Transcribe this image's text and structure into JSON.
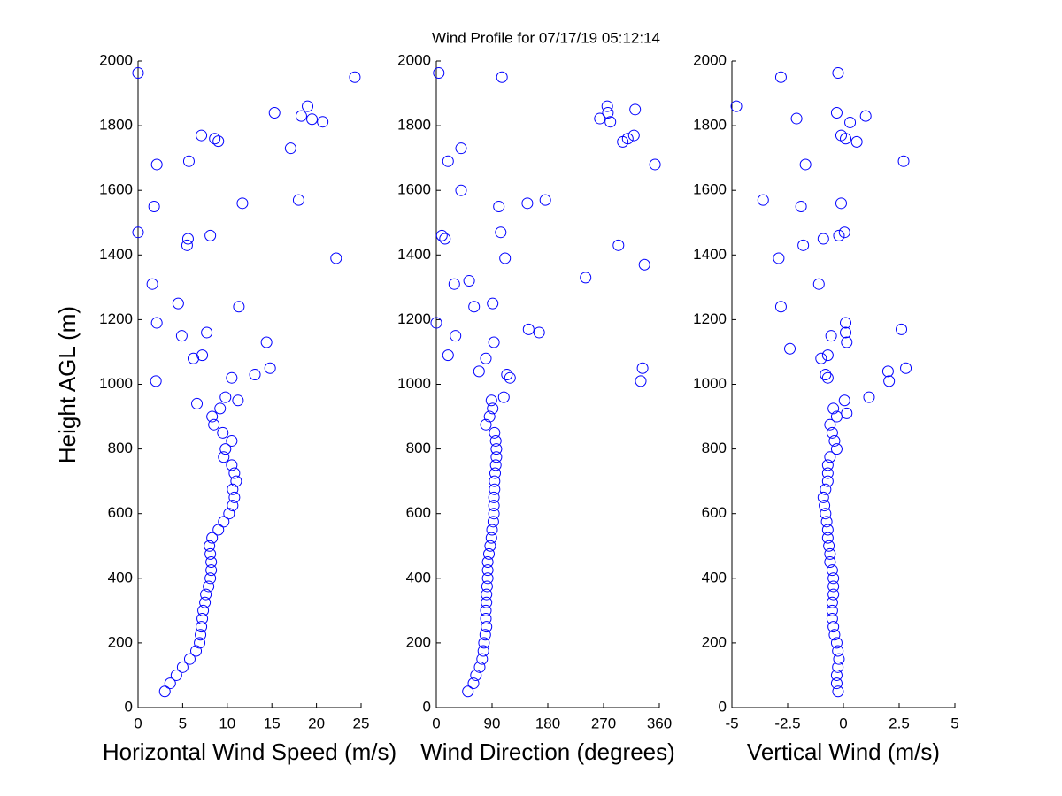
{
  "title": "Wind Profile for  07/17/19 05:12:14",
  "chart_data": [
    {
      "type": "scatter",
      "xlabel": "Horizontal Wind Speed (m/s)",
      "ylabel": "Height AGL (m)",
      "color": "#0000ff",
      "xlim": [
        0,
        25
      ],
      "xticks": [
        0,
        5,
        10,
        15,
        20,
        25
      ],
      "ylim": [
        0,
        2000
      ],
      "yticks": [
        0,
        200,
        400,
        600,
        800,
        1000,
        1200,
        1400,
        1600,
        1800,
        2000
      ],
      "x": [
        3.0,
        3.6,
        4.3,
        5.0,
        5.8,
        6.5,
        6.9,
        7.0,
        7.1,
        7.2,
        7.3,
        7.5,
        7.6,
        7.9,
        8.1,
        8.2,
        8.2,
        8.1,
        8.0,
        8.3,
        9.0,
        9.6,
        10.2,
        10.6,
        10.8,
        10.6,
        11.0,
        10.8,
        10.5,
        9.6,
        9.8,
        10.5,
        9.5,
        8.5,
        8.3,
        9.2,
        0,
        24.3,
        19,
        15.3,
        18.3,
        19.5,
        20.7,
        7.1,
        8.6,
        9.0,
        17.1,
        5.7,
        2.1,
        18.0,
        11.7,
        1.8,
        0,
        8.1,
        5.6,
        5.5,
        22.2,
        1.6,
        4.5,
        11.3,
        2.1,
        7.7,
        4.9,
        14.4,
        7.2,
        6.2,
        14.8,
        13.1,
        10.5,
        2.0,
        9.8,
        11.2,
        6.6
      ],
      "y": [
        50,
        75,
        100,
        125,
        150,
        175,
        200,
        225,
        250,
        275,
        300,
        325,
        350,
        375,
        400,
        425,
        450,
        475,
        500,
        525,
        550,
        575,
        600,
        625,
        650,
        675,
        700,
        725,
        750,
        775,
        800,
        825,
        850,
        875,
        900,
        925,
        1963,
        1950,
        1860,
        1840,
        1830,
        1820,
        1812,
        1770,
        1760,
        1752,
        1730,
        1690,
        1680,
        1570,
        1560,
        1550,
        1470,
        1460,
        1450,
        1430,
        1390,
        1310,
        1250,
        1240,
        1190,
        1160,
        1150,
        1130,
        1090,
        1080,
        1050,
        1030,
        1020,
        1010,
        960,
        950,
        940
      ]
    },
    {
      "type": "scatter",
      "xlabel": "Wind Direction (degrees)",
      "color": "#0000ff",
      "xlim": [
        0,
        360
      ],
      "xticks": [
        0,
        90,
        180,
        270,
        360
      ],
      "ylim": [
        0,
        2000
      ],
      "yticks": [
        0,
        200,
        400,
        600,
        800,
        1000,
        1200,
        1400,
        1600,
        1800,
        2000
      ],
      "x": [
        51,
        60,
        64,
        70,
        74,
        76,
        77,
        79,
        81,
        80,
        80,
        81,
        81,
        82,
        83,
        83,
        83,
        85,
        87,
        89,
        90,
        92,
        93,
        93,
        93,
        94,
        94,
        95,
        96,
        97,
        97,
        96,
        94,
        80,
        86,
        91,
        4,
        106,
        276,
        321,
        277,
        264,
        281,
        319,
        309,
        301,
        40,
        19,
        353,
        176,
        147,
        101,
        40,
        104,
        9,
        14,
        294,
        111,
        336,
        241,
        53,
        29,
        91,
        61,
        0,
        149,
        166,
        31,
        93,
        19,
        80,
        333,
        69,
        114,
        119,
        330,
        109,
        89
      ],
      "y": [
        50,
        75,
        100,
        125,
        150,
        175,
        200,
        225,
        250,
        275,
        300,
        325,
        350,
        375,
        400,
        425,
        450,
        475,
        500,
        525,
        550,
        575,
        600,
        625,
        650,
        675,
        700,
        725,
        750,
        775,
        800,
        825,
        850,
        875,
        900,
        925,
        1963,
        1950,
        1860,
        1850,
        1840,
        1822,
        1812,
        1770,
        1760,
        1750,
        1730,
        1690,
        1680,
        1570,
        1560,
        1550,
        1600,
        1470,
        1460,
        1450,
        1430,
        1390,
        1370,
        1330,
        1320,
        1310,
        1250,
        1240,
        1190,
        1170,
        1160,
        1150,
        1130,
        1090,
        1080,
        1050,
        1040,
        1030,
        1020,
        1010,
        960,
        950
      ]
    },
    {
      "type": "scatter",
      "xlabel": "Vertical Wind (m/s)",
      "color": "#0000ff",
      "xlim": [
        -5,
        5
      ],
      "xticks": [
        -5,
        -2.5,
        0,
        2.5,
        5
      ],
      "ylim": [
        0,
        2000
      ],
      "yticks": [
        0,
        200,
        400,
        600,
        800,
        1000,
        1200,
        1400,
        1600,
        1800,
        2000
      ],
      "x": [
        -0.24,
        -0.3,
        -0.3,
        -0.25,
        -0.2,
        -0.25,
        -0.3,
        -0.4,
        -0.45,
        -0.5,
        -0.5,
        -0.5,
        -0.45,
        -0.45,
        -0.45,
        -0.5,
        -0.6,
        -0.6,
        -0.65,
        -0.7,
        -0.7,
        -0.75,
        -0.8,
        -0.85,
        -0.9,
        -0.8,
        -0.7,
        -0.7,
        -0.7,
        -0.6,
        -0.3,
        -0.4,
        -0.5,
        -0.6,
        -0.3,
        -0.45,
        -0.24,
        -2.8,
        -4.8,
        -0.3,
        1.0,
        -2.1,
        0.3,
        -0.1,
        0.1,
        0.6,
        2.7,
        -1.7,
        -3.6,
        -0.1,
        -1.9,
        0.05,
        -0.2,
        -0.9,
        -1.8,
        -2.9,
        -1.1,
        -2.8,
        0.1,
        2.6,
        0.1,
        -0.55,
        0.15,
        -2.4,
        -0.7,
        -1.0,
        2.8,
        2.0,
        -0.8,
        -0.7,
        2.05,
        1.15,
        0.05,
        0.15
      ],
      "y": [
        50,
        75,
        100,
        125,
        150,
        175,
        200,
        225,
        250,
        275,
        300,
        325,
        350,
        375,
        400,
        425,
        450,
        475,
        500,
        525,
        550,
        575,
        600,
        625,
        650,
        675,
        700,
        725,
        750,
        775,
        800,
        825,
        850,
        875,
        900,
        925,
        1963,
        1950,
        1860,
        1840,
        1830,
        1822,
        1810,
        1770,
        1760,
        1750,
        1690,
        1680,
        1570,
        1560,
        1550,
        1470,
        1460,
        1450,
        1430,
        1390,
        1310,
        1240,
        1190,
        1170,
        1160,
        1150,
        1130,
        1110,
        1090,
        1080,
        1050,
        1040,
        1030,
        1020,
        1010,
        960,
        950,
        910
      ]
    }
  ]
}
